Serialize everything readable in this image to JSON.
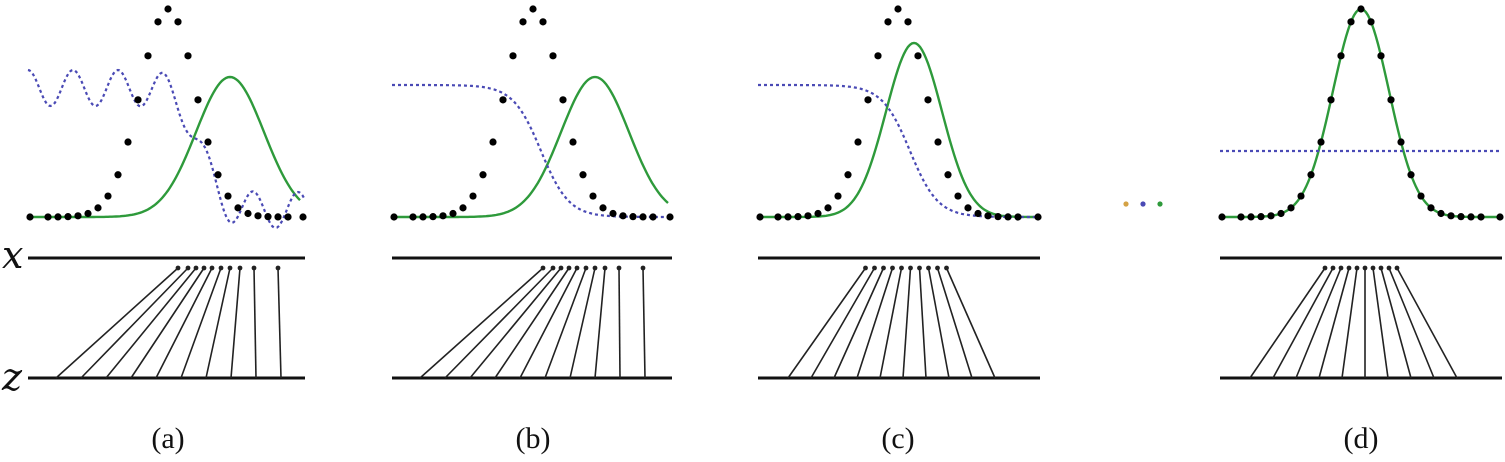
{
  "figure": {
    "axis_labels": {
      "x": "x",
      "z": "z"
    },
    "panels": [
      {
        "caption": "(a)",
        "discriminator": "oscillating",
        "generator": "shifted",
        "mapping": "skewed"
      },
      {
        "caption": "(b)",
        "discriminator": "sigmoid",
        "generator": "shifted",
        "mapping": "skewed"
      },
      {
        "caption": "(c)",
        "discriminator": "sigmoid",
        "generator": "close",
        "mapping": "near"
      },
      {
        "caption": "(d)",
        "discriminator": "flat",
        "generator": "matched",
        "mapping": "matched"
      }
    ],
    "colors": {
      "data_points": "#000000",
      "generator_curve": "#2e9a3b",
      "discriminator_curve": "#4a4ab5",
      "axis_line": "#111111",
      "mapping_arrows": "#222222",
      "ellipsis_dots": [
        "#d4a245",
        "#4a4ab5",
        "#2e9a3b"
      ]
    }
  }
}
